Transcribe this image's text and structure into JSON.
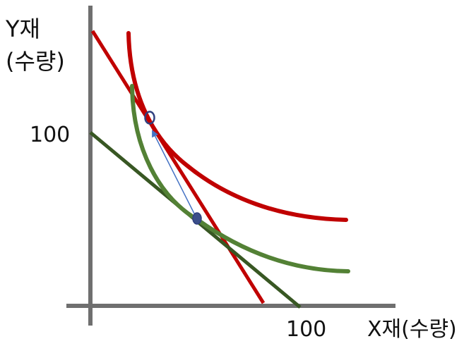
{
  "labels": {
    "y_axis_line1": "Y재",
    "y_axis_line2": "(수량)",
    "y_tick": "100",
    "x_tick": "100",
    "x_axis": "X재(수량)"
  },
  "colors": {
    "axis": "#6f6f6f",
    "red": "#c00000",
    "green": "#538135",
    "dark_green": "#385723",
    "arrow": "#4472c4",
    "point_stroke": "#2f3f7f",
    "point_fill": "#3b4f8a"
  },
  "diagram": {
    "elements": [
      "y-axis",
      "x-axis",
      "red-budget-line",
      "dark-green-budget-line",
      "red-indifference-curve",
      "green-indifference-curve",
      "tangency-point-red",
      "tangency-point-green",
      "arrow-between-points"
    ]
  }
}
